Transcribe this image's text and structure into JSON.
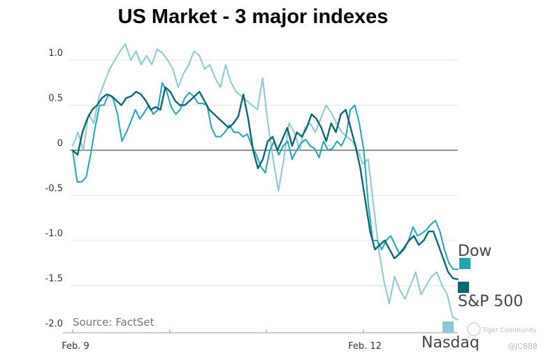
{
  "chart_data": {
    "type": "line",
    "title": "US Market - 3 major indexes",
    "source": "Source: FactSet",
    "ylim": [
      -2.0,
      1.2
    ],
    "yticks": [
      1.0,
      0.5,
      0,
      -0.5,
      -1.0,
      -1.5,
      -2.0
    ],
    "ytick_labels": [
      "1.0",
      "0.5",
      "0",
      "-0.5",
      "-1.0",
      "-1.5",
      "-2.0"
    ],
    "x_tick_labels": [
      "Feb. 9",
      "Feb. 12"
    ],
    "grid": true,
    "legend_placement": "right",
    "colors": {
      "dow": "#1fa5b5",
      "sp500": "#0d6673",
      "nasdaq": "#8cc8d3",
      "grid": "#e6e6e6",
      "zero": "#555555"
    },
    "series": [
      {
        "name": "Dow",
        "key": "dow",
        "values": [
          0.0,
          -0.35,
          -0.35,
          -0.3,
          -0.05,
          0.25,
          0.5,
          0.5,
          0.62,
          0.58,
          0.4,
          0.1,
          0.2,
          0.32,
          0.45,
          0.35,
          0.42,
          0.5,
          0.4,
          0.45,
          0.75,
          0.65,
          0.48,
          0.4,
          0.45,
          0.58,
          0.64,
          0.6,
          0.52,
          0.52,
          0.5,
          0.25,
          0.15,
          0.15,
          0.2,
          0.28,
          0.2,
          0.2,
          0.15,
          0.18,
          0.05,
          -0.05,
          -0.18,
          -0.25,
          0.0,
          0.1,
          -0.05,
          0.05,
          0.1,
          -0.1,
          0.0,
          0.08,
          0.12,
          0.05,
          0.02,
          -0.08,
          0.1,
          0.0,
          0.02,
          0.1,
          0.05,
          0.15,
          0.45,
          0.5,
          0.3,
          0.0,
          -0.6,
          -1.0,
          -1.0,
          -1.1,
          -1.0,
          -0.95,
          -1.05,
          -1.15,
          -1.1,
          -1.0,
          -0.85,
          -0.95,
          -0.92,
          -0.88,
          -0.82,
          -0.78,
          -0.9,
          -1.1,
          -1.25,
          -1.32,
          -1.32
        ]
      },
      {
        "name": "S&P 500",
        "key": "sp500",
        "values": [
          0.0,
          -0.05,
          0.2,
          0.35,
          0.45,
          0.5,
          0.58,
          0.62,
          0.6,
          0.55,
          0.5,
          0.58,
          0.6,
          0.65,
          0.62,
          0.55,
          0.45,
          0.48,
          0.45,
          0.7,
          0.65,
          0.55,
          0.5,
          0.5,
          0.55,
          0.6,
          0.65,
          0.55,
          0.45,
          0.4,
          0.35,
          0.3,
          0.25,
          0.3,
          0.38,
          0.62,
          0.35,
          0.0,
          -0.2,
          -0.1,
          0.1,
          0.15,
          0.0,
          0.12,
          0.25,
          0.05,
          0.2,
          0.15,
          0.25,
          0.4,
          0.35,
          0.25,
          0.1,
          0.3,
          0.2,
          0.4,
          0.45,
          0.25,
          0.05,
          -0.2,
          -0.55,
          -0.9,
          -1.1,
          -1.05,
          -1.0,
          -1.1,
          -1.2,
          -1.15,
          -1.08,
          -1.0,
          -0.95,
          -1.05,
          -1.0,
          -0.9,
          -0.9,
          -1.05,
          -1.2,
          -1.35,
          -1.42,
          -1.43
        ]
      },
      {
        "name": "Nasdaq",
        "key": "nasdaq",
        "values": [
          0.05,
          0.2,
          0.0,
          0.4,
          0.3,
          0.6,
          0.75,
          0.9,
          1.0,
          1.1,
          1.18,
          1.0,
          1.1,
          0.95,
          1.05,
          0.95,
          1.12,
          1.08,
          1.0,
          0.9,
          0.7,
          0.85,
          0.95,
          1.1,
          1.05,
          0.9,
          0.95,
          0.8,
          0.7,
          0.95,
          0.75,
          0.65,
          0.6,
          0.55,
          0.5,
          0.45,
          0.8,
          0.3,
          -0.1,
          -0.45,
          -0.1,
          0.3,
          0.2,
          0.0,
          0.25,
          0.3,
          0.2,
          0.35,
          0.5,
          0.42,
          0.3,
          0.2,
          0.15,
          0.1,
          0.0,
          -0.15,
          -0.1,
          -0.6,
          -1.1,
          -1.45,
          -1.7,
          -1.4,
          -1.55,
          -1.65,
          -1.5,
          -1.35,
          -1.6,
          -1.5,
          -1.4,
          -1.35,
          -1.5,
          -1.6,
          -1.85,
          -1.88
        ]
      }
    ]
  },
  "watermark": {
    "brand": "Tiger Community",
    "handle": "@JC888"
  }
}
